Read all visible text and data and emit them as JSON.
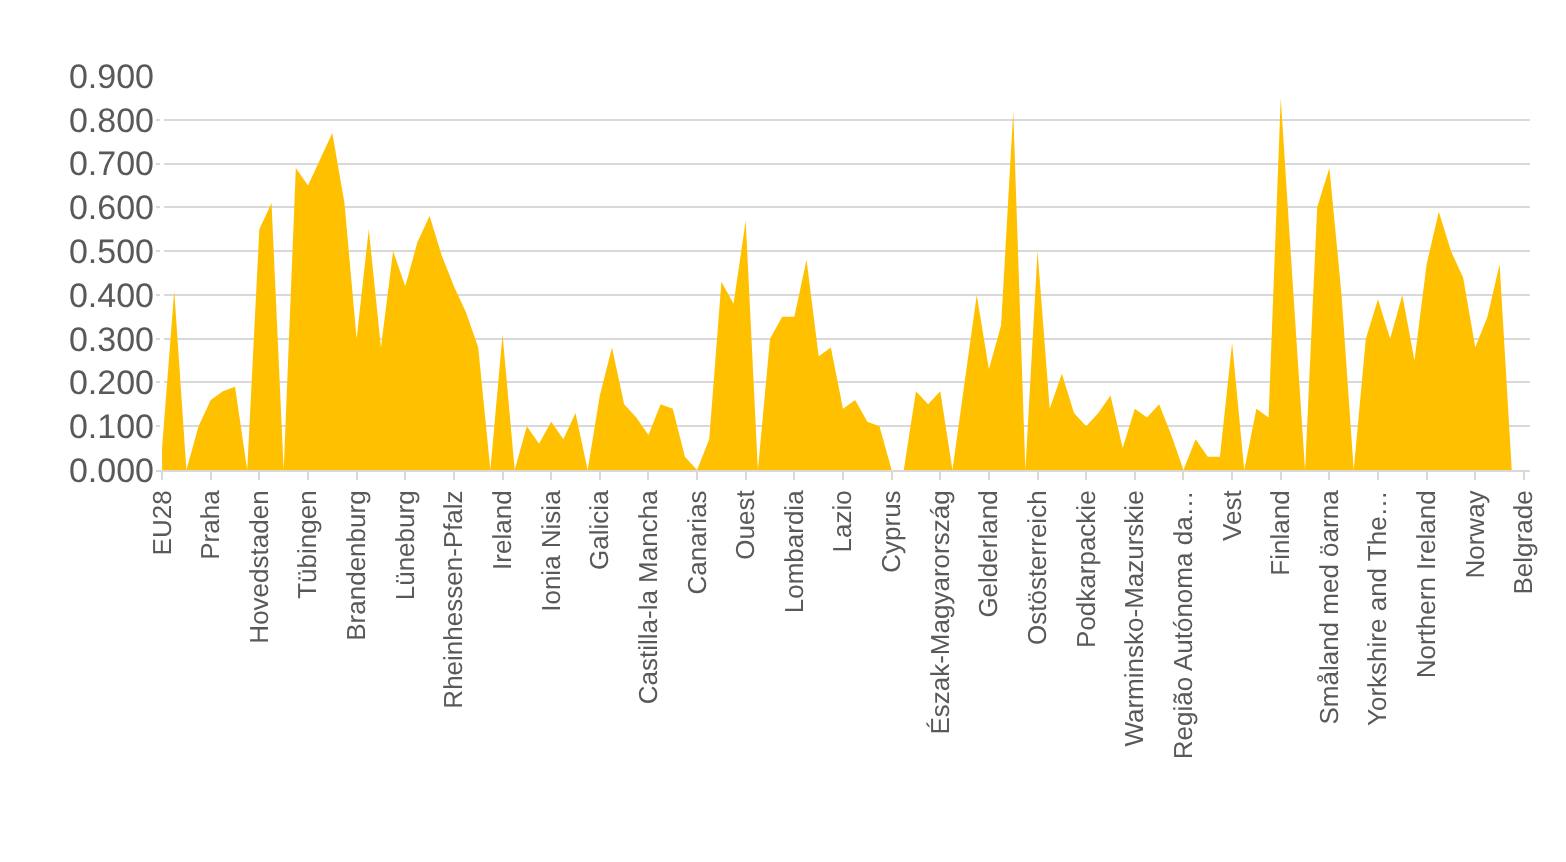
{
  "chart_data": {
    "type": "area",
    "color": "#ffc000",
    "categories": [
      "EU28",
      null,
      null,
      null,
      "Praha",
      null,
      null,
      null,
      "Hovedstaden",
      null,
      null,
      null,
      "Tübingen",
      null,
      null,
      null,
      "Brandenburg",
      null,
      null,
      null,
      "Lüneburg",
      null,
      null,
      null,
      "Rheinhessen-Pfalz",
      null,
      null,
      null,
      "Ireland",
      null,
      null,
      null,
      "Ionia Nisia",
      null,
      null,
      null,
      "Galicia",
      null,
      null,
      null,
      "Castilla-la Mancha",
      null,
      null,
      null,
      "Canarias",
      null,
      null,
      null,
      "Ouest",
      null,
      null,
      null,
      "Lombardia",
      null,
      null,
      null,
      "Lazio",
      null,
      null,
      null,
      "Cyprus",
      null,
      null,
      null,
      "Észak-Magyarország",
      null,
      null,
      null,
      "Gelderland",
      null,
      null,
      null,
      "Ostösterreich",
      null,
      null,
      null,
      "Podkarpackie",
      null,
      null,
      null,
      "Warminsko-Mazurskie",
      null,
      null,
      null,
      "Região Autónoma da…",
      null,
      null,
      null,
      "Vest",
      null,
      null,
      null,
      "Finland",
      null,
      null,
      null,
      "Småland med öarna",
      null,
      null,
      null,
      "Yorkshire and The…",
      null,
      null,
      null,
      "Northern Ireland",
      null,
      null,
      null,
      "Norway",
      null,
      null,
      null,
      "Belgrade"
    ],
    "values": [
      0.05,
      0.41,
      0.0,
      0.1,
      0.16,
      0.18,
      0.19,
      0.0,
      0.55,
      0.61,
      0.0,
      0.69,
      0.65,
      0.71,
      0.77,
      0.61,
      0.3,
      0.55,
      0.28,
      0.5,
      0.42,
      0.52,
      0.58,
      0.49,
      0.42,
      0.36,
      0.28,
      0.0,
      0.31,
      0.0,
      0.1,
      0.06,
      0.11,
      0.07,
      0.13,
      0.0,
      0.17,
      0.28,
      0.15,
      0.12,
      0.08,
      0.15,
      0.14,
      0.03,
      0.0,
      0.07,
      0.43,
      0.38,
      0.57,
      0.0,
      0.3,
      0.35,
      0.35,
      0.48,
      0.26,
      0.28,
      0.14,
      0.16,
      0.11,
      0.1,
      0.0,
      0.0,
      0.18,
      0.15,
      0.18,
      0.0,
      0.2,
      0.4,
      0.23,
      0.33,
      0.82,
      0.0,
      0.5,
      0.14,
      0.22,
      0.13,
      0.1,
      0.13,
      0.17,
      0.05,
      0.14,
      0.12,
      0.15,
      0.08,
      0.0,
      0.07,
      0.03,
      0.03,
      0.29,
      0.0,
      0.14,
      0.12,
      0.85,
      0.42,
      0.0,
      0.6,
      0.69,
      0.4,
      0.0,
      0.3,
      0.39,
      0.3,
      0.4,
      0.25,
      0.47,
      0.59,
      0.5,
      0.44,
      0.28,
      0.35,
      0.47,
      0.0,
      0.0
    ],
    "ylim": [
      0,
      0.9
    ],
    "yticks": [
      {
        "value": 0,
        "label": "0.000"
      },
      {
        "value": 0.1,
        "label": "0.100"
      },
      {
        "value": 0.2,
        "label": "0.200"
      },
      {
        "value": 0.3,
        "label": "0.300"
      },
      {
        "value": 0.4,
        "label": "0.400"
      },
      {
        "value": 0.5,
        "label": "0.500"
      },
      {
        "value": 0.6,
        "label": "0.600"
      },
      {
        "value": 0.7,
        "label": "0.700"
      },
      {
        "value": 0.8,
        "label": "0.800"
      },
      {
        "value": 0.9,
        "label": "0.900"
      }
    ],
    "grid": "y"
  }
}
